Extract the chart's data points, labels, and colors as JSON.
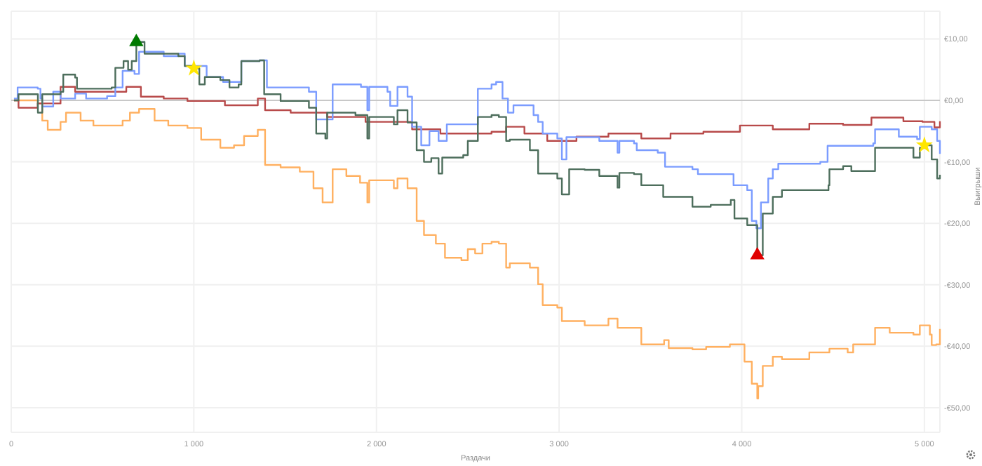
{
  "chart_data": {
    "type": "step",
    "xlabel": "Раздачи",
    "ylabel": "Выигрыши",
    "xlim": [
      0,
      5085
    ],
    "ylim": [
      -54,
      14.5
    ],
    "xticks": [
      {
        "value": 0,
        "label": "0"
      },
      {
        "value": 1000,
        "label": "1 000"
      },
      {
        "value": 2000,
        "label": "2 000"
      },
      {
        "value": 3000,
        "label": "3 000"
      },
      {
        "value": 4000,
        "label": "4 000"
      },
      {
        "value": 5000,
        "label": "5 000"
      }
    ],
    "yticks": [
      {
        "value": 10,
        "label": "€10,00"
      },
      {
        "value": 0,
        "label": "€0,00"
      },
      {
        "value": -10,
        "label": "-€10,00"
      },
      {
        "value": -20,
        "label": "-€20,00"
      },
      {
        "value": -30,
        "label": "-€30,00"
      },
      {
        "value": -40,
        "label": "-€40,00"
      },
      {
        "value": -50,
        "label": "-€50,00"
      }
    ],
    "grid": true,
    "marker": "none",
    "line_style": "solid",
    "ref_lines": [
      {
        "axis": "y",
        "value": 0,
        "color": "#c8c8c8"
      }
    ],
    "series": [
      {
        "color": "#ffb060",
        "x": [
          15,
          145,
          170,
          200,
          270,
          300,
          380,
          450,
          610,
          650,
          700,
          785,
          860,
          965,
          1040,
          1145,
          1220,
          1275,
          1350,
          1390,
          1475,
          1580,
          1655,
          1705,
          1760,
          1835,
          1910,
          1950,
          1960,
          2095,
          2115,
          2170,
          2220,
          2260,
          2325,
          2375,
          2465,
          2500,
          2540,
          2580,
          2630,
          2670,
          2710,
          2730,
          2840,
          2885,
          2910,
          2990,
          3015,
          3140,
          3270,
          3320,
          3395,
          3450,
          3575,
          3600,
          3730,
          3805,
          3935,
          4015,
          4055,
          4085,
          4090,
          4115,
          4170,
          4220,
          4370,
          4480,
          4580,
          4610,
          4730,
          4810,
          4940,
          4975,
          5030,
          5040,
          5065,
          5085
        ],
        "values": [
          0,
          -0.5,
          -3.3,
          -4.8,
          -3.5,
          -2,
          -3.3,
          -4.1,
          -3.3,
          -2,
          -1.4,
          -3.3,
          -4.1,
          -4.5,
          -6.4,
          -7.7,
          -7.3,
          -5.8,
          -4.8,
          -10.5,
          -10.9,
          -11.6,
          -14.3,
          -16.6,
          -11.2,
          -12.3,
          -13.4,
          -16.6,
          -13,
          -14.3,
          -12.7,
          -14.3,
          -19.6,
          -21.9,
          -23.3,
          -25.6,
          -26,
          -24.2,
          -24.9,
          -23.3,
          -23,
          -23.3,
          -27.2,
          -26.5,
          -27.2,
          -29.9,
          -33.3,
          -33.7,
          -35.9,
          -36.6,
          -35.5,
          -37,
          -37,
          -39.7,
          -39,
          -40.3,
          -40.5,
          -40.1,
          -39.7,
          -42.5,
          -46.1,
          -48.5,
          -46.5,
          -43.2,
          -41.7,
          -42.1,
          -41,
          -40.4,
          -41,
          -39.7,
          -37,
          -37.8,
          -38.1,
          -36.6,
          -38.1,
          -39.8,
          -39.7,
          -37.2
        ]
      },
      {
        "color": "#b84a4a",
        "x": [
          15,
          40,
          145,
          270,
          350,
          450,
          550,
          630,
          710,
          835,
          965,
          1120,
          1170,
          1350,
          1390,
          1530,
          1730,
          1940,
          2195,
          2350,
          2630,
          2710,
          2810,
          2935,
          3095,
          3270,
          3450,
          3610,
          3790,
          3990,
          4170,
          4370,
          4555,
          4710,
          4885,
          4990,
          5055,
          5085
        ],
        "values": [
          0,
          -1.2,
          -0.5,
          2.2,
          1.4,
          1.4,
          1.4,
          2.2,
          0.6,
          0.3,
          -0.1,
          -0.1,
          -0.8,
          0.3,
          -1.6,
          -2,
          -2.7,
          -3.5,
          -4.7,
          -5.4,
          -5.1,
          -4.3,
          -5.4,
          -6.6,
          -5.9,
          -5.4,
          -6.2,
          -5.4,
          -5.1,
          -4.1,
          -4.7,
          -3.8,
          -4,
          -2.8,
          -3.4,
          -3.5,
          -4.4,
          -3.4
        ]
      },
      {
        "color": "#7b9cff",
        "x": [
          15,
          35,
          145,
          160,
          170,
          230,
          270,
          350,
          410,
          525,
          570,
          610,
          675,
          700,
          835,
          915,
          950,
          1070,
          1150,
          1160,
          1245,
          1260,
          1360,
          1400,
          1630,
          1670,
          1730,
          1760,
          1915,
          1950,
          1960,
          2060,
          2075,
          2110,
          2115,
          2170,
          2195,
          2245,
          2290,
          2340,
          2385,
          2500,
          2555,
          2630,
          2655,
          2690,
          2720,
          2750,
          2860,
          2885,
          2910,
          2990,
          3015,
          3040,
          3205,
          3220,
          3310,
          3320,
          3330,
          3410,
          3425,
          3540,
          3580,
          3730,
          3760,
          3940,
          3955,
          4030,
          4055,
          4080,
          4105,
          4145,
          4170,
          4200,
          4430,
          4470,
          4720,
          4730,
          4860,
          4960,
          4975,
          5040,
          5070,
          5085
        ],
        "values": [
          0.3,
          2.1,
          1.9,
          0.3,
          -1,
          1.4,
          0.3,
          1.1,
          0.3,
          0.7,
          2.1,
          4.8,
          4.3,
          7.9,
          7.2,
          7.6,
          5.6,
          3.8,
          3.8,
          3,
          3,
          6.4,
          6.5,
          2.1,
          1.4,
          -3.1,
          -3.1,
          2.6,
          2.2,
          -1.6,
          2.2,
          1.4,
          -0.9,
          -0.9,
          2.2,
          0.6,
          -4.3,
          -7.3,
          -5,
          -6.6,
          -3.9,
          -3.9,
          1.9,
          2.6,
          3,
          0.3,
          -2,
          -0.8,
          -2.4,
          -3.5,
          -5.4,
          -6.2,
          -9.6,
          -6,
          -6,
          -6.6,
          -6.6,
          -8.5,
          -6.6,
          -7,
          -8.1,
          -8.5,
          -10.8,
          -11.2,
          -12,
          -12,
          -13.8,
          -14.6,
          -19.6,
          -20.8,
          -16.6,
          -12.7,
          -11.2,
          -10.3,
          -10,
          -7.4,
          -7,
          -4.7,
          -5.9,
          -6.3,
          -4.3,
          -4.7,
          -6.6,
          -8.7
        ]
      },
      {
        "color": "#4d6e5c",
        "x": [
          15,
          40,
          146,
          170,
          270,
          285,
          350,
          360,
          550,
          570,
          615,
          640,
          660,
          685,
          730,
          915,
          950,
          1000,
          1030,
          1060,
          1145,
          1195,
          1245,
          1260,
          1360,
          1385,
          1475,
          1630,
          1670,
          1720,
          1730,
          1885,
          1950,
          1960,
          2095,
          2115,
          2170,
          2220,
          2260,
          2300,
          2340,
          2360,
          2475,
          2500,
          2555,
          2630,
          2670,
          2710,
          2730,
          2840,
          2885,
          2990,
          3015,
          3055,
          3140,
          3220,
          3320,
          3330,
          3410,
          3450,
          3550,
          3570,
          3730,
          3830,
          3940,
          3960,
          4030,
          4085,
          4115,
          4170,
          4220,
          4475,
          4480,
          4555,
          4600,
          4730,
          4940,
          4975,
          5000,
          5040,
          5070,
          5085
        ],
        "values": [
          0,
          1,
          -2,
          1,
          1.4,
          4.2,
          3.7,
          1.9,
          2.1,
          5.3,
          6.4,
          5,
          6.4,
          9.5,
          7.6,
          7.2,
          5.6,
          5.2,
          2.6,
          3.8,
          3.3,
          2.1,
          2.6,
          6.4,
          6.5,
          1,
          -0.1,
          -1.2,
          -5.4,
          -6.2,
          -2,
          -2.4,
          -6.2,
          -2.7,
          -3.9,
          -1.6,
          -3.6,
          -8.1,
          -10,
          -9.4,
          -11.9,
          -9.3,
          -8.9,
          -6.6,
          -2.7,
          -2.4,
          -2.7,
          -6.6,
          -6.4,
          -8.1,
          -11.9,
          -12.7,
          -15.3,
          -11.2,
          -11.3,
          -12.3,
          -14.2,
          -11.8,
          -12,
          -13.8,
          -13.8,
          -15.7,
          -17.3,
          -17,
          -16.2,
          -19.2,
          -20.3,
          -25.2,
          -18.4,
          -15.7,
          -14.6,
          -13.8,
          -11.2,
          -10.7,
          -11.5,
          -7.7,
          -9.3,
          -7.7,
          -7.3,
          -9.6,
          -12.7,
          -12.1
        ]
      },
      {
        "type": "scatter",
        "marker": "triangle",
        "color": "#007a00",
        "x": [
          685
        ],
        "values": [
          9.5
        ]
      },
      {
        "type": "scatter",
        "marker": "triangle",
        "color": "#e00000",
        "x": [
          4085
        ],
        "values": [
          -25.2
        ]
      },
      {
        "type": "scatter",
        "marker": "star",
        "color": "#ffe600",
        "x": [
          1000,
          5000
        ],
        "values": [
          5.2,
          -7.3
        ]
      }
    ]
  }
}
